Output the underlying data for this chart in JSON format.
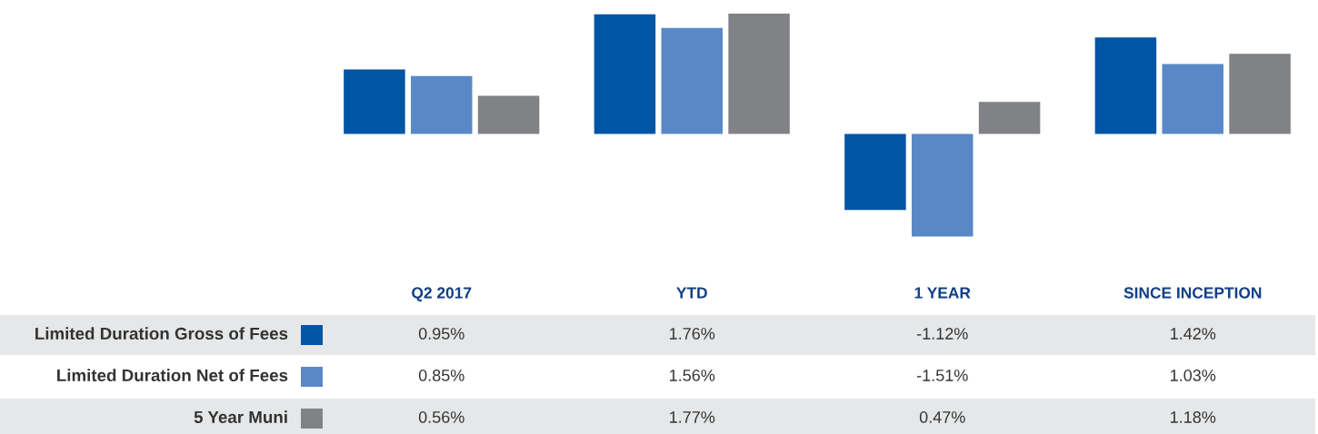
{
  "chart_data": {
    "type": "bar",
    "categories": [
      "Q2 2017",
      "YTD",
      "1 YEAR",
      "SINCE INCEPTION"
    ],
    "series": [
      {
        "name": "Limited Duration Gross of Fees",
        "color": "#0055a5",
        "values": [
          0.95,
          1.76,
          -1.12,
          1.42
        ],
        "value_labels": [
          "0.95%",
          "1.76%",
          "-1.12%",
          "1.42%"
        ]
      },
      {
        "name": "Limited Duration Net of Fees",
        "color": "#5a88c6",
        "values": [
          0.85,
          1.56,
          -1.51,
          1.03
        ],
        "value_labels": [
          "0.85%",
          "1.56%",
          "-1.51%",
          "1.03%"
        ]
      },
      {
        "name": "5 Year Muni",
        "color": "#808285",
        "values": [
          0.56,
          1.77,
          0.47,
          1.18
        ],
        "value_labels": [
          "0.56%",
          "1.77%",
          "0.47%",
          "1.18%"
        ]
      }
    ],
    "legend": "bottom"
  }
}
